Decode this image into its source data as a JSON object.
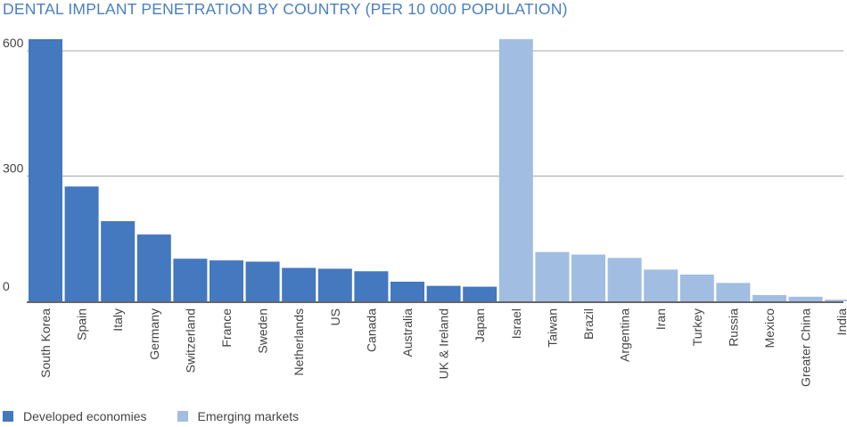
{
  "chart_data": {
    "type": "bar",
    "title": "DENTAL IMPLANT PENETRATION BY COUNTRY (PER 10 000 POPULATION)",
    "xlabel": "",
    "ylabel": "",
    "ylim": [
      0,
      600
    ],
    "yticks": [
      0,
      300,
      600
    ],
    "ytick_labels": [
      "0",
      "300",
      "600"
    ],
    "categories": [
      "South Korea",
      "Spain",
      "Italy",
      "Germany",
      "Switzerland",
      "France",
      "Sweden",
      "Netherlands",
      "US",
      "Canada",
      "Australia",
      "UK & Ireland",
      "Japan",
      "Israel",
      "Taiwan",
      "Brazil",
      "Argentina",
      "Iran",
      "Turkey",
      "Russia",
      "Mexico",
      "Greater China",
      "India"
    ],
    "values": [
      628,
      275,
      192,
      160,
      102,
      98,
      95,
      80,
      78,
      72,
      47,
      37,
      35,
      628,
      118,
      112,
      104,
      76,
      64,
      44,
      15,
      11,
      4
    ],
    "groups": [
      "developed",
      "developed",
      "developed",
      "developed",
      "developed",
      "developed",
      "developed",
      "developed",
      "developed",
      "developed",
      "developed",
      "developed",
      "developed",
      "emerging",
      "emerging",
      "emerging",
      "emerging",
      "emerging",
      "emerging",
      "emerging",
      "emerging",
      "emerging",
      "emerging"
    ],
    "series": [
      {
        "name": "Developed economies",
        "key": "developed",
        "color": "#4478bf"
      },
      {
        "name": "Emerging markets",
        "key": "emerging",
        "color": "#a2bde2"
      }
    ]
  }
}
